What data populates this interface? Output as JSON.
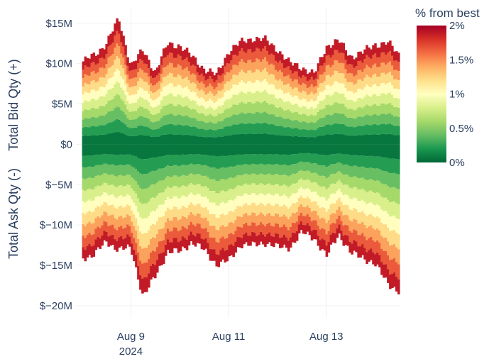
{
  "chart_data": {
    "type": "area",
    "title": "",
    "xlabel": "",
    "ylabel_top": "Total Bid Qty (+)",
    "ylabel_bottom": "Total Ask Qty (-)",
    "x_ticks": [
      {
        "date": "2024-08-09",
        "label": "Aug 9",
        "sublabel": "2024"
      },
      {
        "date": "2024-08-11",
        "label": "Aug 11",
        "sublabel": ""
      },
      {
        "date": "2024-08-13",
        "label": "Aug 13",
        "sublabel": ""
      }
    ],
    "x_range": [
      "2024-08-07T21:00",
      "2024-08-14T12:00"
    ],
    "y_ticks": [
      {
        "value": 15,
        "label": "$15M"
      },
      {
        "value": 10,
        "label": "$10M"
      },
      {
        "value": 5,
        "label": "$5M"
      },
      {
        "value": 0,
        "label": "$0"
      },
      {
        "value": -5,
        "label": "$−5M"
      },
      {
        "value": -10,
        "label": "$−10M"
      },
      {
        "value": -15,
        "label": "$−15M"
      },
      {
        "value": -20,
        "label": "$−20M"
      }
    ],
    "y_unit": "$M",
    "ylim": [
      -21.5,
      17
    ],
    "grid": true,
    "colorbar": {
      "title": "% from best",
      "range": [
        0,
        2
      ],
      "ticks": [
        {
          "value": 2,
          "label": "2%"
        },
        {
          "value": 1.5,
          "label": "1.5%"
        },
        {
          "value": 1,
          "label": "1%"
        },
        {
          "value": 0.5,
          "label": "0.5%"
        },
        {
          "value": 0,
          "label": "0%"
        }
      ],
      "colorscale": [
        "#006837",
        "#1a9850",
        "#66bd63",
        "#a6d96a",
        "#d9ef8b",
        "#ffffbf",
        "#fee08b",
        "#fdae61",
        "#f46d43",
        "#d73027",
        "#a50026"
      ]
    },
    "series": [
      {
        "side": "bid",
        "x": [
          "2024-08-08T00:00",
          "2024-08-08T06:00",
          "2024-08-08T12:00",
          "2024-08-08T18:00",
          "2024-08-09T00:00",
          "2024-08-09T06:00",
          "2024-08-09T12:00",
          "2024-08-09T18:00",
          "2024-08-10T00:00",
          "2024-08-10T06:00",
          "2024-08-10T12:00",
          "2024-08-10T18:00",
          "2024-08-11T00:00",
          "2024-08-11T06:00",
          "2024-08-11T12:00",
          "2024-08-11T18:00",
          "2024-08-12T00:00",
          "2024-08-12T06:00",
          "2024-08-12T12:00",
          "2024-08-12T18:00",
          "2024-08-13T00:00",
          "2024-08-13T06:00",
          "2024-08-13T12:00",
          "2024-08-13T18:00",
          "2024-08-14T00:00",
          "2024-08-14T06:00",
          "2024-08-14T12:00"
        ],
        "depth_at_2pct": [
          10.2,
          11.0,
          12.6,
          15.5,
          9.8,
          11.6,
          9.0,
          12.4,
          12.3,
          10.8,
          9.4,
          8.5,
          11.6,
          12.6,
          13.2,
          12.9,
          11.8,
          10.0,
          9.6,
          8.6,
          12.2,
          12.8,
          10.9,
          11.4,
          12.4,
          12.6,
          11.0
        ]
      },
      {
        "side": "ask",
        "x": [
          "2024-08-08T00:00",
          "2024-08-08T06:00",
          "2024-08-08T12:00",
          "2024-08-08T18:00",
          "2024-08-09T00:00",
          "2024-08-09T06:00",
          "2024-08-09T12:00",
          "2024-08-09T18:00",
          "2024-08-10T00:00",
          "2024-08-10T06:00",
          "2024-08-10T12:00",
          "2024-08-10T18:00",
          "2024-08-11T00:00",
          "2024-08-11T06:00",
          "2024-08-11T12:00",
          "2024-08-11T18:00",
          "2024-08-12T00:00",
          "2024-08-12T06:00",
          "2024-08-12T12:00",
          "2024-08-12T18:00",
          "2024-08-13T00:00",
          "2024-08-13T06:00",
          "2024-08-13T12:00",
          "2024-08-13T18:00",
          "2024-08-14T00:00",
          "2024-08-14T06:00",
          "2024-08-14T12:00"
        ],
        "depth_at_2pct": [
          -14.2,
          -13.5,
          -12.2,
          -12.9,
          -13.0,
          -18.8,
          -16.4,
          -13.2,
          -13.4,
          -12.0,
          -13.2,
          -14.8,
          -14.5,
          -12.3,
          -12.6,
          -12.1,
          -12.8,
          -12.7,
          -11.0,
          -11.5,
          -14.0,
          -11.0,
          -13.6,
          -13.9,
          -15.0,
          -17.0,
          -18.5
        ]
      }
    ]
  }
}
